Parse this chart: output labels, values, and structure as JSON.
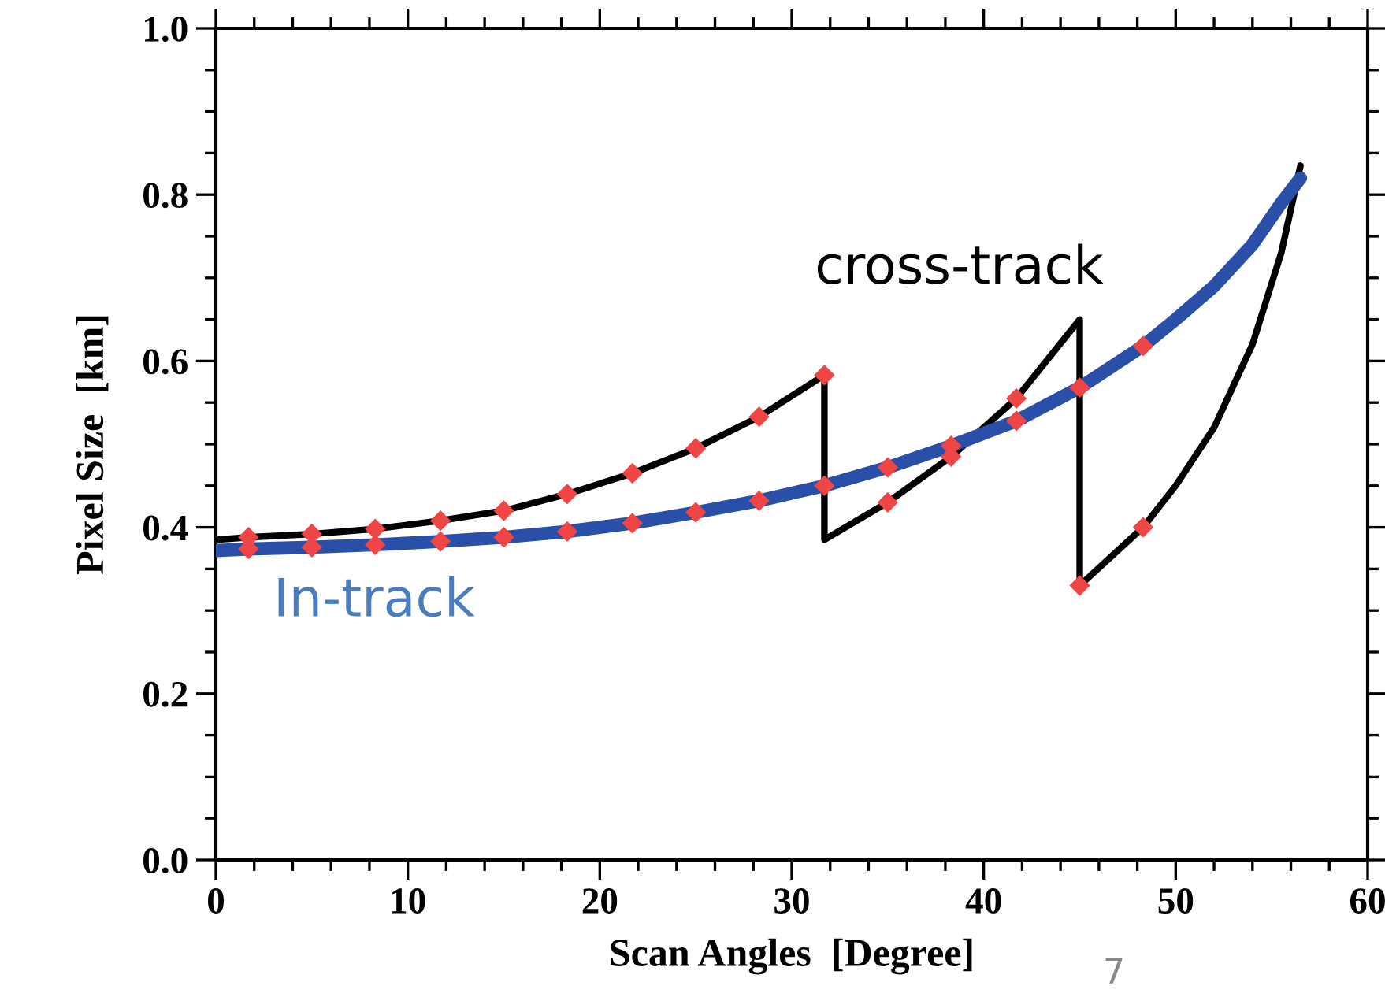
{
  "chart_data": {
    "type": "line",
    "xlabel": "Scan Angles  [Degree]",
    "ylabel": "Pixel Size  [km]",
    "xlim": [
      0,
      60
    ],
    "xticks": [
      0,
      10,
      20,
      30,
      40,
      50,
      60
    ],
    "ylim": [
      0,
      1
    ],
    "yticks": [
      {
        "value": 0,
        "label": "0.0"
      },
      {
        "value": 0.2,
        "label": "0.2"
      },
      {
        "value": 0.4,
        "label": "0.4"
      },
      {
        "value": 0.6,
        "label": "0.6"
      },
      {
        "value": 0.8,
        "label": "0.8"
      },
      {
        "value": 1,
        "label": "1.0"
      }
    ],
    "grid": false,
    "legend": false,
    "series": [
      {
        "name": "cross-track",
        "color": "#000000",
        "marker": "none",
        "x": [
          0,
          1.7,
          5,
          8.3,
          11.7,
          15,
          18.3,
          21.7,
          25,
          28.3,
          31.7,
          31.7,
          35,
          38.3,
          41.7,
          45,
          45,
          48.3,
          50,
          52,
          54,
          55.5,
          56.5
        ],
        "values": [
          0.385,
          0.388,
          0.392,
          0.398,
          0.408,
          0.42,
          0.44,
          0.465,
          0.495,
          0.533,
          0.583,
          0.385,
          0.43,
          0.485,
          0.555,
          0.65,
          0.33,
          0.4,
          0.45,
          0.52,
          0.62,
          0.73,
          0.835
        ]
      },
      {
        "name": "In-track",
        "color": "#2a4fa8",
        "marker": "none",
        "x": [
          0,
          1.7,
          5,
          8.3,
          11.7,
          15,
          18.3,
          21.7,
          25,
          28.3,
          31.7,
          35,
          38.3,
          41.7,
          45,
          48.3,
          50,
          52,
          54,
          55.5,
          56.5
        ],
        "values": [
          0.372,
          0.374,
          0.376,
          0.379,
          0.383,
          0.388,
          0.395,
          0.405,
          0.418,
          0.432,
          0.45,
          0.472,
          0.498,
          0.528,
          0.568,
          0.618,
          0.65,
          0.69,
          0.74,
          0.79,
          0.82
        ]
      },
      {
        "color": "#f04545",
        "type": "scatter",
        "marker": "diamond",
        "x": [
          1.7,
          5,
          8.3,
          11.7,
          15,
          18.3,
          21.7,
          25,
          28.3,
          31.7,
          35,
          38.3,
          41.7,
          45,
          48.3,
          1.7,
          5,
          8.3,
          11.7,
          15,
          18.3,
          21.7,
          25,
          28.3,
          31.7,
          35,
          38.3,
          41.7,
          45,
          48.3
        ],
        "values": [
          0.388,
          0.392,
          0.398,
          0.408,
          0.42,
          0.44,
          0.465,
          0.495,
          0.533,
          0.583,
          0.43,
          0.485,
          0.555,
          0.33,
          0.4,
          0.374,
          0.376,
          0.379,
          0.383,
          0.388,
          0.395,
          0.405,
          0.418,
          0.432,
          0.45,
          0.472,
          0.498,
          0.528,
          0.568,
          0.618
        ]
      }
    ],
    "annotations": [
      "7"
    ]
  }
}
